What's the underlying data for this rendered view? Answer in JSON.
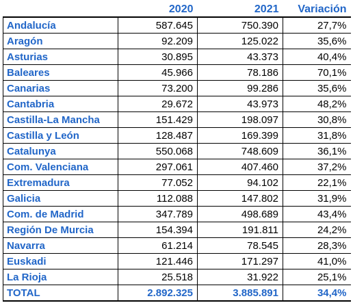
{
  "table": {
    "headers": [
      "",
      "2020",
      "2021",
      "Variación"
    ],
    "rows": [
      {
        "region": "Andalucía",
        "y2020": "587.645",
        "y2021": "750.390",
        "variation": "27,7%"
      },
      {
        "region": "Aragón",
        "y2020": "92.209",
        "y2021": "125.022",
        "variation": "35,6%"
      },
      {
        "region": "Asturias",
        "y2020": "30.895",
        "y2021": "43.373",
        "variation": "40,4%"
      },
      {
        "region": "Baleares",
        "y2020": "45.966",
        "y2021": "78.186",
        "variation": "70,1%"
      },
      {
        "region": "Canarias",
        "y2020": "73.200",
        "y2021": "99.286",
        "variation": "35,6%"
      },
      {
        "region": "Cantabria",
        "y2020": "29.672",
        "y2021": "43.973",
        "variation": "48,2%"
      },
      {
        "region": "Castilla-La Mancha",
        "y2020": "151.429",
        "y2021": "198.097",
        "variation": "30,8%"
      },
      {
        "region": "Castilla y León",
        "y2020": "128.487",
        "y2021": "169.399",
        "variation": "31,8%"
      },
      {
        "region": "Catalunya",
        "y2020": "550.068",
        "y2021": "748.609",
        "variation": "36,1%"
      },
      {
        "region": "Com. Valenciana",
        "y2020": "297.061",
        "y2021": "407.460",
        "variation": "37,2%"
      },
      {
        "region": "Extremadura",
        "y2020": "77.052",
        "y2021": "94.102",
        "variation": "22,1%"
      },
      {
        "region": "Galicia",
        "y2020": "112.088",
        "y2021": "147.802",
        "variation": "31,9%"
      },
      {
        "region": "Com. de Madrid",
        "y2020": "347.789",
        "y2021": "498.689",
        "variation": "43,4%"
      },
      {
        "region": "Región De Murcia",
        "y2020": "154.394",
        "y2021": "191.811",
        "variation": "24,2%"
      },
      {
        "region": "Navarra",
        "y2020": "61.214",
        "y2021": "78.545",
        "variation": "28,3%"
      },
      {
        "region": "Euskadi",
        "y2020": "121.446",
        "y2021": "171.297",
        "variation": "41,0%"
      },
      {
        "region": "La Rioja",
        "y2020": "25.518",
        "y2021": "31.922",
        "variation": "25,1%"
      }
    ],
    "total": {
      "region": "TOTAL",
      "y2020": "2.892.325",
      "y2021": "3.885.891",
      "variation": "34,4%"
    }
  }
}
